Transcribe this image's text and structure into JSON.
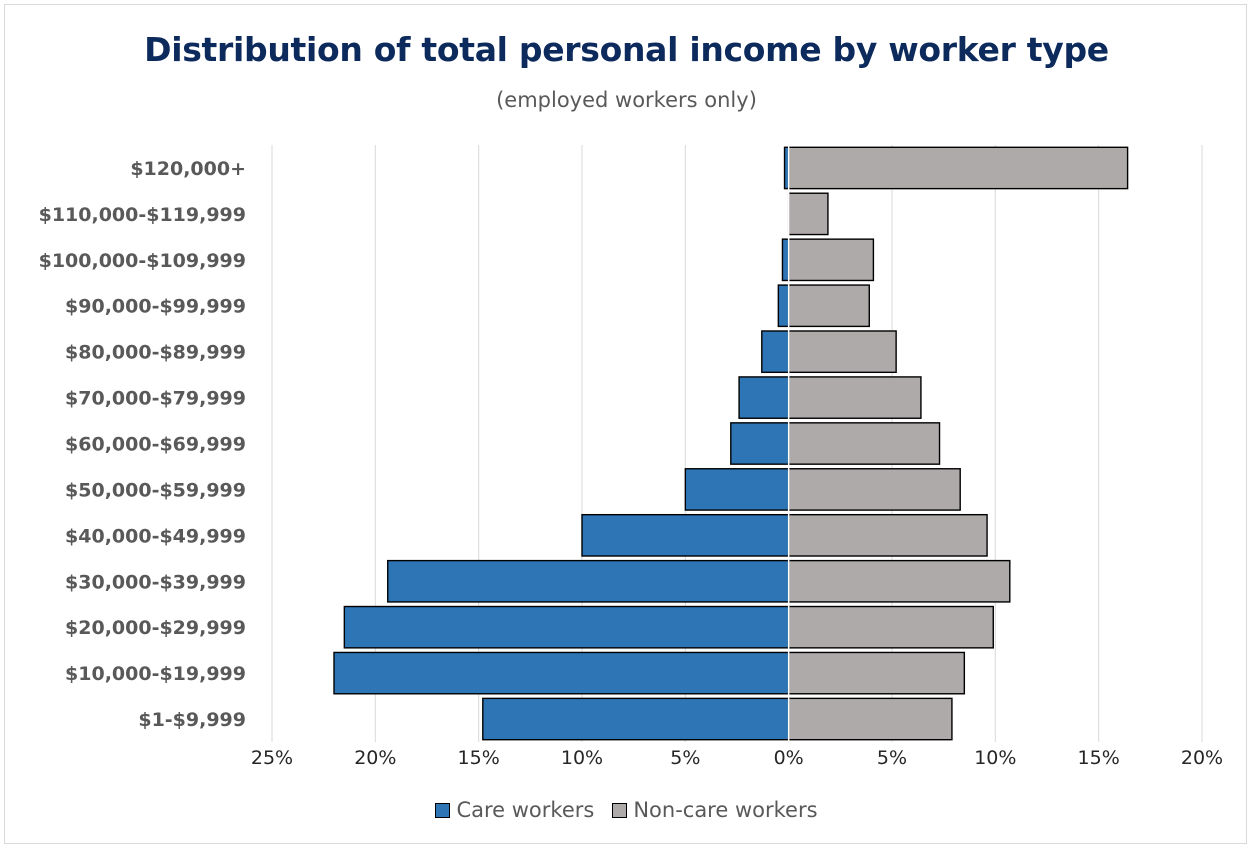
{
  "chart_data": {
    "type": "bar",
    "orientation": "horizontal",
    "title": "Distribution of total personal income by worker type",
    "subtitle": "(employed workers only)",
    "categories": [
      "$120,000+",
      "$110,000-$119,999",
      "$100,000-$109,999",
      "$90,000-$99,999",
      "$80,000-$89,999",
      "$70,000-$79,999",
      "$60,000-$69,999",
      "$50,000-$59,999",
      "$40,000-$49,999",
      "$30,000-$39,999",
      "$20,000-$29,999",
      "$10,000-$19,999",
      "$1-$9,999"
    ],
    "series": [
      {
        "name": "Care workers",
        "color": "#2e75b6",
        "direction": "left",
        "values": [
          0.2,
          0.0,
          0.3,
          0.5,
          1.3,
          2.4,
          2.8,
          5.0,
          10.0,
          19.4,
          21.5,
          22.0,
          14.8
        ]
      },
      {
        "name": "Non-care workers",
        "color": "#aeaaaa",
        "direction": "right",
        "values": [
          16.4,
          1.9,
          4.1,
          3.9,
          5.2,
          6.4,
          7.3,
          8.3,
          9.6,
          10.7,
          9.9,
          8.5,
          7.9
        ]
      }
    ],
    "x_ticks": [
      "25%",
      "20%",
      "15%",
      "10%",
      "5%",
      "0%",
      "5%",
      "10%",
      "15%",
      "20%"
    ],
    "xlim": [
      -25,
      20
    ],
    "grid": true,
    "legend_position": "bottom"
  }
}
